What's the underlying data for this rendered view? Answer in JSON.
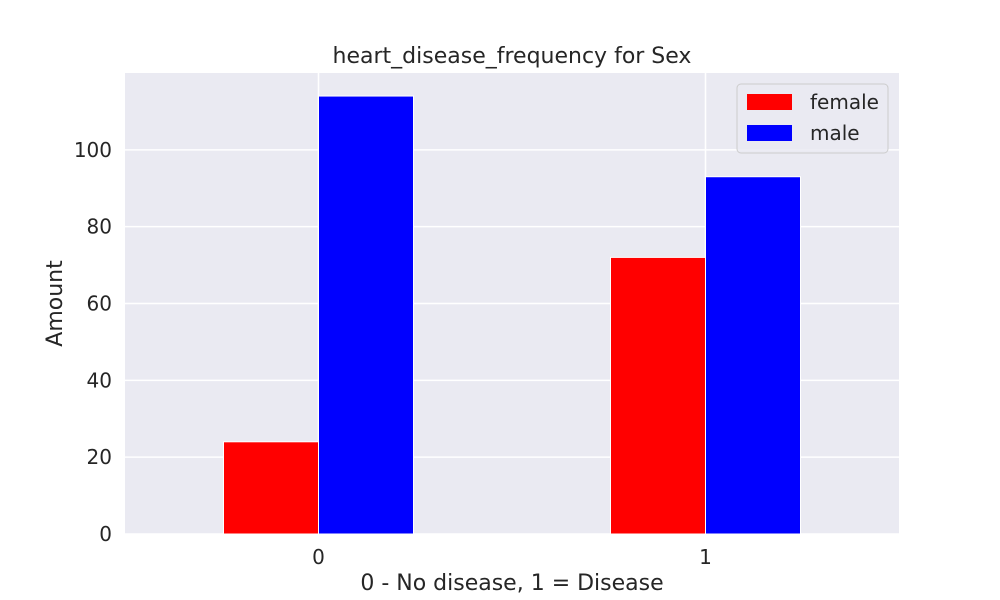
{
  "chart_data": {
    "type": "bar",
    "title": "heart_disease_frequency for Sex",
    "xlabel": "0 - No disease, 1 = Disease",
    "ylabel": "Amount",
    "categories": [
      "0",
      "1"
    ],
    "series": [
      {
        "name": "female",
        "values": [
          24,
          72
        ],
        "color": "#ff0000"
      },
      {
        "name": "male",
        "values": [
          114,
          93
        ],
        "color": "#0000ff"
      }
    ],
    "ylim": [
      0,
      120
    ],
    "yticks": [
      0,
      20,
      40,
      60,
      80,
      100
    ],
    "grid": true,
    "legend_position": "top-right",
    "background_color": "#eaeaf2"
  }
}
